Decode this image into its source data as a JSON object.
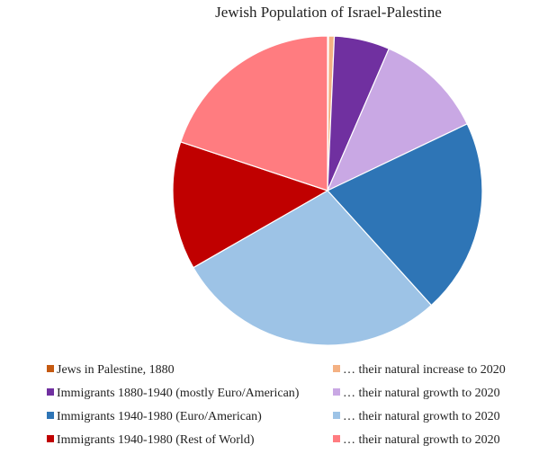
{
  "chart_data": {
    "type": "pie",
    "title": "Jewish Population of Israel-Palestine",
    "slices": [
      {
        "label": "Jews in Palestine, 1880",
        "value": 0.1,
        "color": "#C55A11"
      },
      {
        "label": "… their natural increase to 2020",
        "value": 0.6,
        "color": "#F4B183"
      },
      {
        "label": "Immigrants 1880-1940 (mostly Euro/American)",
        "value": 5.8,
        "color": "#7030A0"
      },
      {
        "label": "… their natural growth to 2020",
        "value": 11.4,
        "color": "#C9A8E4"
      },
      {
        "label": "Immigrants 1940-1980 (Euro/American)",
        "value": 20.4,
        "color": "#2E75B6"
      },
      {
        "label": "… their natural growth to 2020",
        "value": 28.4,
        "color": "#9DC3E6"
      },
      {
        "label": "Immigrants 1940-1980 (Rest of World)",
        "value": 13.4,
        "color": "#C00000"
      },
      {
        "label": "… their natural growth to 2020",
        "value": 19.9,
        "color": "#FF7C80"
      }
    ],
    "legend_position": "bottom"
  }
}
